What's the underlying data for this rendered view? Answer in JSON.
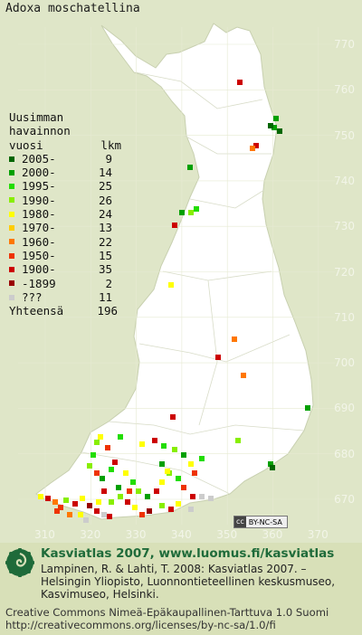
{
  "map": {
    "title": "Adoxa moschatellina",
    "y_ticks": [
      "770",
      "760",
      "750",
      "740",
      "730",
      "720",
      "710",
      "700",
      "690",
      "680",
      "670"
    ],
    "x_ticks": [
      "310",
      "320",
      "330",
      "340",
      "350",
      "360",
      "370"
    ],
    "background_color": "#dfe6c8",
    "land_color": "#ffffff",
    "grid_color": "#e8ecd8"
  },
  "legend": {
    "header": [
      "Uusimman",
      "havainnon",
      "vuosi"
    ],
    "count_header": "lkm",
    "items": [
      {
        "label": "2005-",
        "count": "9",
        "color": "#006600"
      },
      {
        "label": "2000-",
        "count": "14",
        "color": "#00a000"
      },
      {
        "label": "1995-",
        "count": "25",
        "color": "#22dd00"
      },
      {
        "label": "1990-",
        "count": "26",
        "color": "#88ee00"
      },
      {
        "label": "1980-",
        "count": "24",
        "color": "#ffff00"
      },
      {
        "label": "1970-",
        "count": "13",
        "color": "#ffcc00"
      },
      {
        "label": "1960-",
        "count": "22",
        "color": "#ff7700"
      },
      {
        "label": "1950-",
        "count": "15",
        "color": "#ee3300"
      },
      {
        "label": "1900-",
        "count": "35",
        "color": "#cc0000"
      },
      {
        "label": "-1899",
        "count": "2",
        "color": "#990000"
      },
      {
        "label": "???",
        "count": "11",
        "color": "#cccccc"
      }
    ],
    "total_label": "Yhteensä",
    "total_count": "196"
  },
  "license_badge": {
    "cc": "cc",
    "text": "BY-NC-SA"
  },
  "footer": {
    "title": "Kasviatlas 2007, www.luomus.fi/kasviatlas",
    "citation": "Lampinen, R. & Lahti, T. 2008: Kasviatlas 2007. – Helsingin Yliopisto, Luonnontieteellinen keskusmuseo, Kasvimuseo, Helsinki.",
    "license": "Creative Commons Nimeä-Epäkaupallinen-Tarttuva 1.0 Suomi http://creativecommons.org/licenses/by-nc-sa/1.0/fi"
  }
}
